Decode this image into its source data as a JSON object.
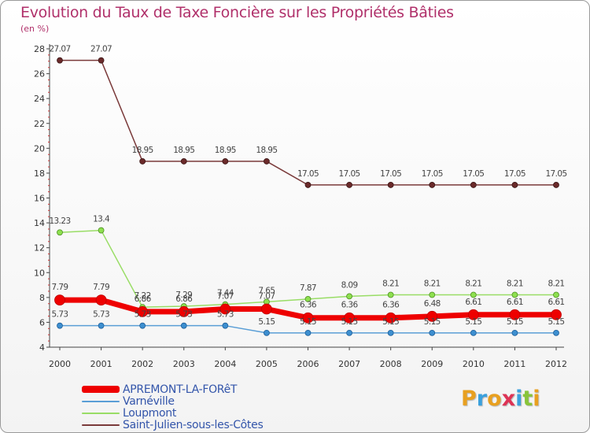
{
  "header": {
    "title": "Evolution du Taux de Taxe Foncière sur les Propriétés Bâties",
    "unit": "(en %)"
  },
  "logo": {
    "text": "Proxiti"
  },
  "chart_data": {
    "type": "line",
    "title": "Evolution du Taux de Taxe Foncière sur les Propriétés Bâties",
    "ylabel": "(en %)",
    "xlabel": "",
    "ylim": [
      4,
      28
    ],
    "yticks": [
      4,
      6,
      8,
      10,
      12,
      14,
      16,
      18,
      20,
      22,
      24,
      26,
      28
    ],
    "x": [
      "2000",
      "2001",
      "2002",
      "2003",
      "2004",
      "2005",
      "2006",
      "2007",
      "2008",
      "2009",
      "2010",
      "2011",
      "2012"
    ],
    "series": [
      {
        "name": "APREMONT-LA-FORêT",
        "color": "#ee0000",
        "values": [
          7.79,
          7.79,
          6.86,
          6.86,
          7.07,
          7.07,
          6.36,
          6.36,
          6.36,
          6.48,
          6.61,
          6.61,
          6.61
        ],
        "labels": [
          "7.79",
          "7.79",
          "6.86",
          "6.86",
          "7.07",
          "7.07",
          "6.36",
          "6.36",
          "6.36",
          "6.48",
          "6.61",
          "6.61",
          "6.61"
        ]
      },
      {
        "name": "Varnéville",
        "color": "#5a9ed6",
        "values": [
          5.73,
          5.73,
          5.73,
          5.73,
          5.73,
          5.15,
          5.15,
          5.15,
          5.15,
          5.15,
          5.15,
          5.15,
          5.15
        ],
        "labels": [
          "5.73",
          "5.73",
          "5.73",
          "5.73",
          "5.73",
          "5.15",
          "5.15",
          "5.15",
          "5.15",
          "5.15",
          "5.15",
          "5.15",
          "5.15"
        ]
      },
      {
        "name": "Loupmont",
        "color": "#99dd66",
        "values": [
          13.23,
          13.4,
          7.22,
          7.29,
          7.44,
          7.65,
          7.87,
          8.09,
          8.21,
          8.21,
          8.21,
          8.21,
          8.21
        ],
        "labels": [
          "13.23",
          "13.4",
          "7.22",
          "7.29",
          "7.44",
          "7.65",
          "7.87",
          "8.09",
          "8.21",
          "8.21",
          "8.21",
          "8.21",
          "8.21"
        ]
      },
      {
        "name": "Saint-Julien-sous-les-Côtes",
        "color": "#7a3a3a",
        "values": [
          27.07,
          27.07,
          18.95,
          18.95,
          18.95,
          18.95,
          17.05,
          17.05,
          17.05,
          17.05,
          17.05,
          17.05,
          17.05
        ],
        "labels": [
          "27.07",
          "27.07",
          "18.95",
          "18.95",
          "18.95",
          "18.95",
          "17.05",
          "17.05",
          "17.05",
          "17.05",
          "17.05",
          "17.05",
          "17.05"
        ]
      }
    ]
  }
}
